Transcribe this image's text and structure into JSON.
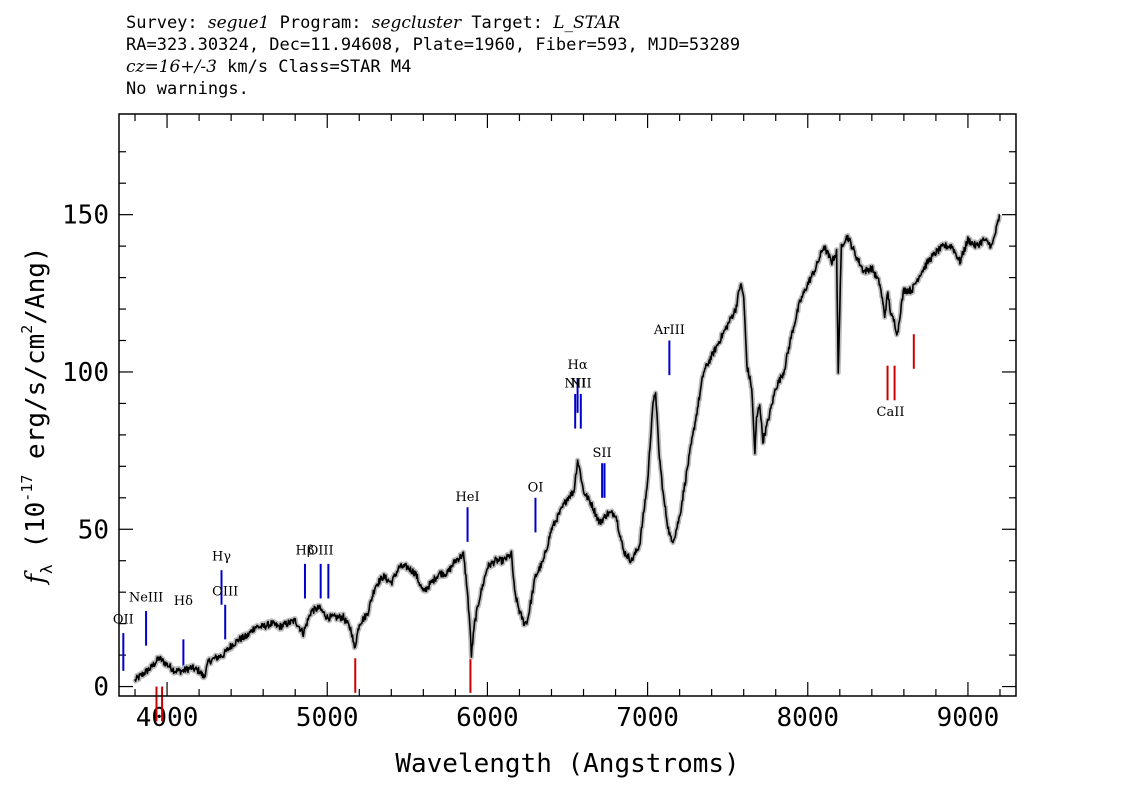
{
  "header": {
    "l1_a": "Survey: ",
    "l1_survey": "segue1",
    "l1_b": " Program: ",
    "l1_program": "segcluster",
    "l1_c": " Target: ",
    "l1_target": "L_STAR",
    "line2": "RA=323.30324, Dec=11.94608, Plate=1960, Fiber=593, MJD=53289",
    "l3_cz": "cz=16+/-3",
    "l3_rest": " km/s Class=STAR M4",
    "line4": "No warnings."
  },
  "chart_data": {
    "type": "line",
    "xlabel": "Wavelength (Angstroms)",
    "ylabel": "f_λ (10^-17 erg/s/cm^2/Ang)",
    "xlim": [
      3700,
      9300
    ],
    "ylim": [
      -3,
      182
    ],
    "xticks": [
      4000,
      5000,
      6000,
      7000,
      8000,
      9000
    ],
    "yticks": [
      0,
      50,
      100,
      150
    ],
    "colors": {
      "spectrum": "#000000",
      "error": "#bbbbbb",
      "emission": "#0000cc",
      "absorption": "#cc0000"
    },
    "spectrum": {
      "x": [
        3800,
        3850,
        3900,
        3950,
        4000,
        4050,
        4100,
        4150,
        4200,
        4230,
        4260,
        4300,
        4350,
        4400,
        4450,
        4500,
        4550,
        4600,
        4650,
        4700,
        4750,
        4800,
        4850,
        4900,
        4950,
        5000,
        5050,
        5100,
        5150,
        5170,
        5200,
        5250,
        5300,
        5350,
        5400,
        5450,
        5500,
        5550,
        5600,
        5650,
        5700,
        5750,
        5800,
        5850,
        5870,
        5890,
        5900,
        5920,
        5950,
        6000,
        6050,
        6100,
        6150,
        6170,
        6200,
        6230,
        6250,
        6300,
        6350,
        6400,
        6450,
        6500,
        6540,
        6563,
        6580,
        6600,
        6650,
        6700,
        6750,
        6800,
        6850,
        6900,
        6950,
        7000,
        7030,
        7050,
        7070,
        7100,
        7130,
        7150,
        7170,
        7200,
        7250,
        7300,
        7350,
        7400,
        7450,
        7500,
        7550,
        7580,
        7600,
        7620,
        7650,
        7670,
        7680,
        7700,
        7720,
        7750,
        7800,
        7850,
        7900,
        7950,
        8000,
        8050,
        8100,
        8150,
        8180,
        8190,
        8200,
        8210,
        8230,
        8250,
        8300,
        8350,
        8400,
        8450,
        8480,
        8500,
        8520,
        8540,
        8560,
        8580,
        8600,
        8650,
        8700,
        8750,
        8800,
        8850,
        8900,
        8950,
        9000,
        9050,
        9100,
        9150,
        9200
      ],
      "y": [
        2,
        4,
        6,
        9,
        7,
        5,
        5,
        6,
        5,
        3,
        8,
        9,
        10,
        13,
        15,
        16,
        19,
        19,
        20,
        19,
        20,
        21,
        17,
        24,
        25,
        22,
        22,
        22,
        18,
        12,
        20,
        23,
        32,
        35,
        33,
        38,
        38,
        36,
        30,
        33,
        36,
        36,
        40,
        42,
        33,
        20,
        10,
        20,
        28,
        38,
        40,
        40,
        42,
        30,
        24,
        20,
        21,
        35,
        40,
        50,
        55,
        60,
        62,
        72,
        68,
        62,
        58,
        52,
        55,
        55,
        43,
        40,
        45,
        65,
        88,
        94,
        75,
        60,
        50,
        46,
        48,
        54,
        70,
        85,
        100,
        105,
        110,
        115,
        120,
        128,
        124,
        102,
        95,
        74,
        85,
        90,
        78,
        84,
        95,
        100,
        112,
        122,
        128,
        133,
        140,
        135,
        138,
        100,
        120,
        140,
        142,
        143,
        137,
        132,
        133,
        128,
        118,
        125,
        118,
        116,
        112,
        120,
        126,
        126,
        131,
        135,
        138,
        140,
        140,
        135,
        142,
        140,
        142,
        140,
        150
      ]
    },
    "emission_lines": [
      {
        "label": "OII",
        "wave": 3727,
        "top": 17,
        "bottom": 5,
        "ly": 20
      },
      {
        "label": "NeIII",
        "wave": 3869,
        "top": 24,
        "bottom": 13,
        "ly": 27
      },
      {
        "label": "Hδ",
        "wave": 4102,
        "top": 15,
        "bottom": 4,
        "ly": 26
      },
      {
        "label": "Hγ",
        "wave": 4340,
        "top": 37,
        "bottom": 26,
        "ly": 40
      },
      {
        "label": "OIII",
        "wave": 4363,
        "top": 26,
        "bottom": 15,
        "ly": 29
      },
      {
        "label": "Hβ",
        "wave": 4861,
        "top": 39,
        "bottom": 28,
        "ly": 42
      },
      {
        "label": "OIII",
        "wave": 4959,
        "top": 39,
        "bottom": 28,
        "ly": 42
      },
      {
        "label": "OIII",
        "wave": 5007,
        "top": 39,
        "bottom": 28,
        "ly": 0
      },
      {
        "label": "HeI",
        "wave": 5876,
        "top": 57,
        "bottom": 46,
        "ly": 59
      },
      {
        "label": "OI",
        "wave": 6300,
        "top": 60,
        "bottom": 49,
        "ly": 62
      },
      {
        "label": "NII",
        "wave": 6548,
        "top": 93,
        "bottom": 82,
        "ly": 95
      },
      {
        "label": "Hα",
        "wave": 6563,
        "top": 98,
        "bottom": 87,
        "ly": 101
      },
      {
        "label": "NII",
        "wave": 6583,
        "top": 93,
        "bottom": 82,
        "ly": 95
      },
      {
        "label": "SII",
        "wave": 6716,
        "top": 71,
        "bottom": 60,
        "ly": 73
      },
      {
        "label": "SII",
        "wave": 6731,
        "top": 71,
        "bottom": 60,
        "ly": 0
      },
      {
        "label": "ArIII",
        "wave": 7136,
        "top": 110,
        "bottom": 99,
        "ly": 112
      }
    ],
    "absorption_lines": [
      {
        "label": "",
        "wave": 3934,
        "top": 0,
        "bottom": -11
      },
      {
        "label": "",
        "wave": 3969,
        "top": 0,
        "bottom": -11
      },
      {
        "label": "",
        "wave": 5175,
        "top": 9,
        "bottom": -2
      },
      {
        "label": "",
        "wave": 5894,
        "top": 9,
        "bottom": -2
      },
      {
        "label": "CaII",
        "wave": 8498,
        "top": 102,
        "bottom": 91,
        "ly": 86
      },
      {
        "label": "CaII",
        "wave": 8542,
        "top": 102,
        "bottom": 91,
        "ly": 0
      },
      {
        "label": "CaII",
        "wave": 8662,
        "top": 112,
        "bottom": 101,
        "ly": 0
      }
    ]
  }
}
